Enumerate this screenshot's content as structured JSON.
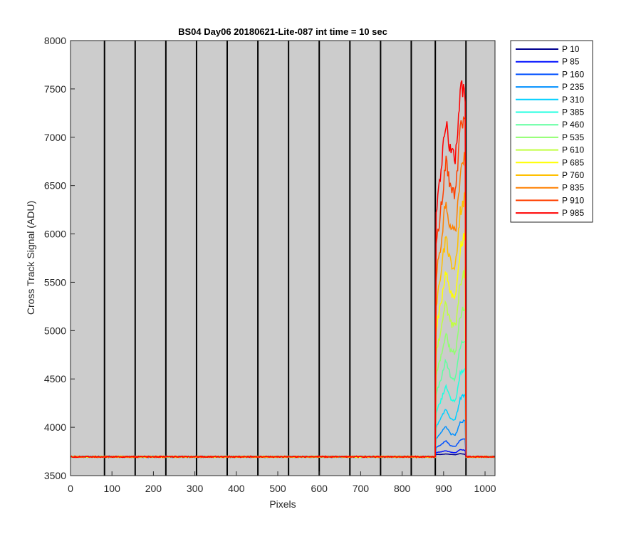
{
  "chart_data": {
    "type": "line",
    "title": "BS04 Day06 20180621-Lite-087 int time = 10 sec",
    "xlabel": "Pixels",
    "ylabel": "Cross Track Signal (ADU)",
    "xlim": [
      0,
      1024
    ],
    "ylim": [
      3500,
      8000
    ],
    "xticks": [
      0,
      100,
      200,
      300,
      400,
      500,
      600,
      700,
      800,
      900,
      1000
    ],
    "yticks": [
      3500,
      4000,
      4500,
      5000,
      5500,
      6000,
      6500,
      7000,
      7500,
      8000
    ],
    "xtick_labels": [
      "0",
      "100",
      "200",
      "300",
      "400",
      "500",
      "600",
      "700",
      "800",
      "900",
      "1000"
    ],
    "ytick_labels": [
      "3500",
      "4000",
      "4500",
      "5000",
      "5500",
      "6000",
      "6500",
      "7000",
      "7500",
      "8000"
    ],
    "background_color": "#cccccc",
    "segment_boundaries_x": [
      82,
      156,
      230,
      304,
      378,
      452,
      526,
      600,
      674,
      748,
      822,
      880,
      954
    ],
    "baseline": 3695,
    "signal_region": [
      882,
      952
    ],
    "legend_position": "outside-right",
    "series": [
      {
        "name": "P 10",
        "color": "#00008f",
        "peak_profile": [
          3720,
          3718,
          3724,
          3719,
          3716,
          3728,
          3720
        ]
      },
      {
        "name": "P 85",
        "color": "#0010ff",
        "peak_profile": [
          3740,
          3745,
          3758,
          3742,
          3736,
          3770,
          3762
        ]
      },
      {
        "name": "P 160",
        "color": "#0050ff",
        "peak_profile": [
          3790,
          3820,
          3860,
          3810,
          3800,
          3870,
          3880
        ]
      },
      {
        "name": "P 235",
        "color": "#0090ff",
        "peak_profile": [
          3880,
          3940,
          4010,
          3930,
          3920,
          4050,
          4070
        ]
      },
      {
        "name": "P 310",
        "color": "#00d0ff",
        "peak_profile": [
          4000,
          4090,
          4190,
          4090,
          4080,
          4300,
          4340
        ]
      },
      {
        "name": "P 385",
        "color": "#20ffe0",
        "peak_profile": [
          4160,
          4280,
          4420,
          4290,
          4270,
          4560,
          4610
        ]
      },
      {
        "name": "P 460",
        "color": "#60ffa0",
        "peak_profile": [
          4340,
          4500,
          4690,
          4530,
          4500,
          4850,
          4920
        ]
      },
      {
        "name": "P 535",
        "color": "#90ff70",
        "peak_profile": [
          4540,
          4740,
          4980,
          4790,
          4760,
          5170,
          5250
        ]
      },
      {
        "name": "P 610",
        "color": "#c0ff40",
        "peak_profile": [
          4760,
          5000,
          5290,
          5070,
          5040,
          5510,
          5610
        ]
      },
      {
        "name": "P 685",
        "color": "#ffff00",
        "peak_profile": [
          5010,
          5290,
          5620,
          5380,
          5340,
          5870,
          5990
        ]
      },
      {
        "name": "P 760",
        "color": "#ffc000",
        "peak_profile": [
          5270,
          5590,
          5970,
          5710,
          5660,
          6250,
          6380
        ]
      },
      {
        "name": "P 835",
        "color": "#ff8000",
        "peak_profile": [
          5550,
          5910,
          6340,
          6060,
          6000,
          6650,
          6790
        ]
      },
      {
        "name": "P 910",
        "color": "#ff4000",
        "peak_profile": [
          5860,
          6260,
          6740,
          6450,
          6380,
          7080,
          7230
        ]
      },
      {
        "name": "P 985",
        "color": "#ff0000",
        "peak_profile": [
          6180,
          6620,
          7160,
          6850,
          6780,
          7520,
          7400
        ]
      }
    ]
  }
}
